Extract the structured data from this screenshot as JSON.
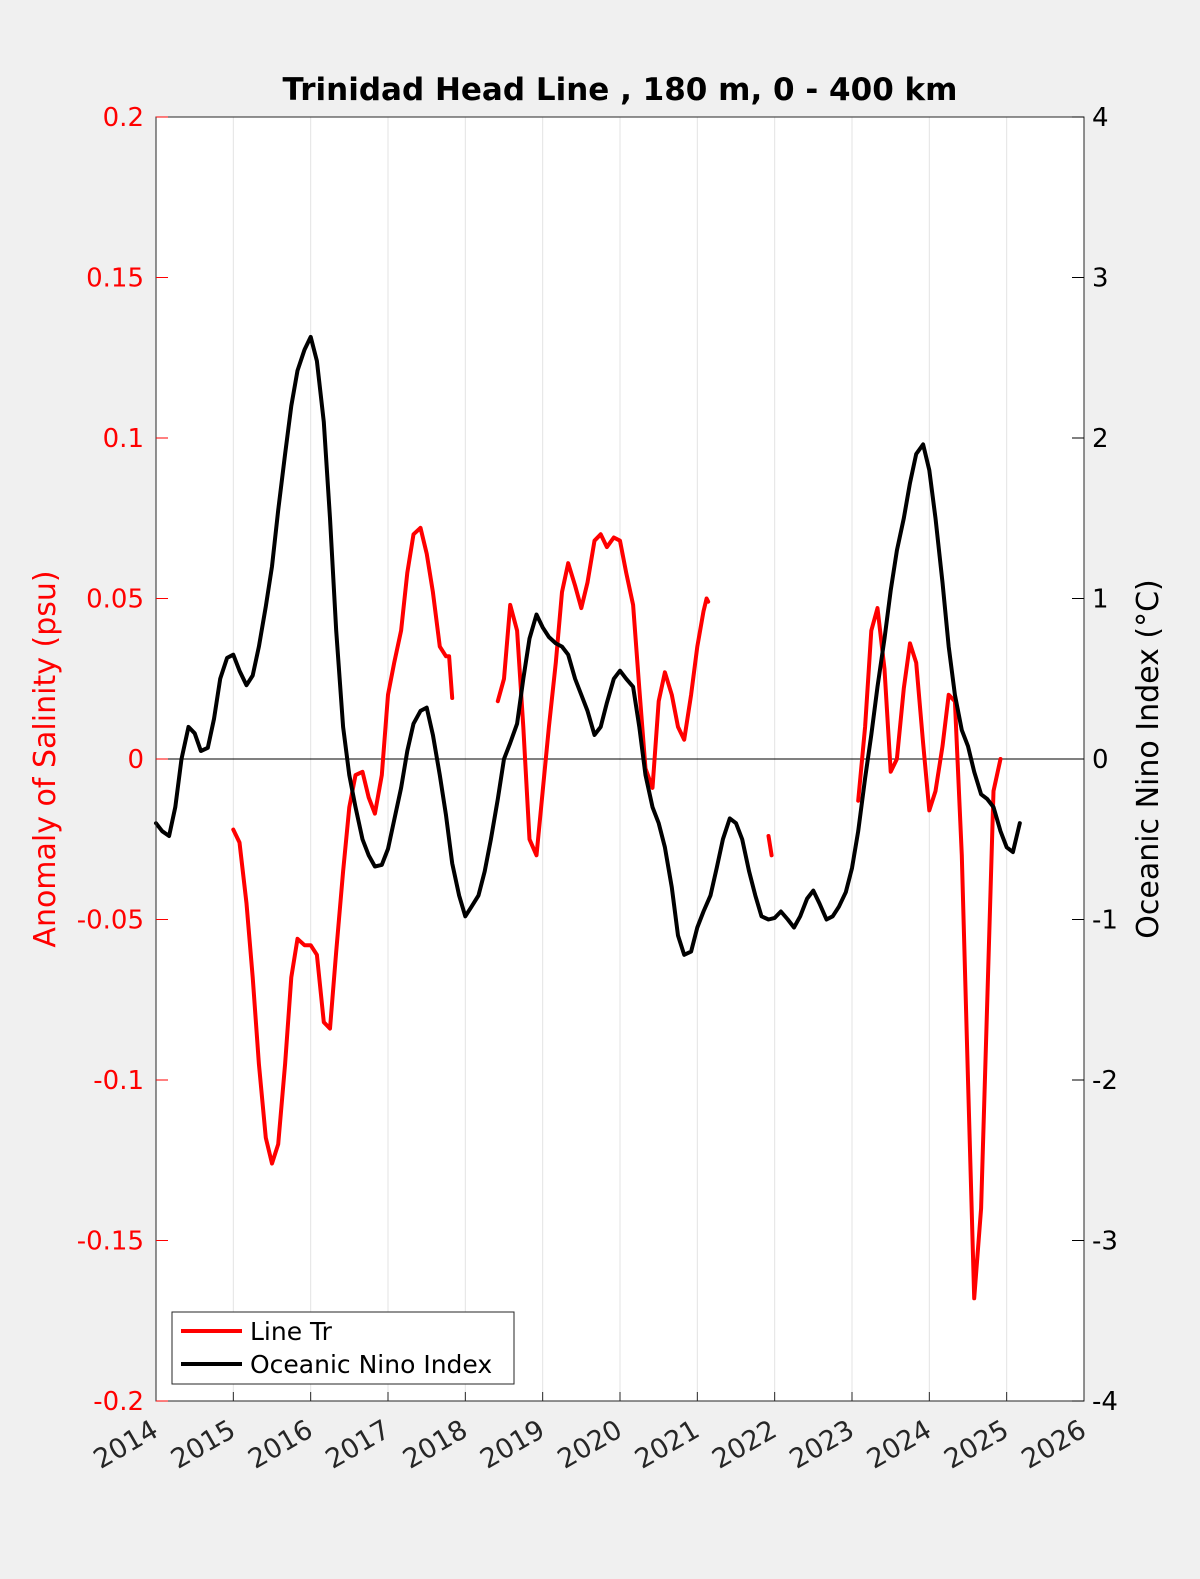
{
  "chart_data": {
    "type": "line",
    "title": "Trinidad Head Line , 180 m, 0 - 400 km",
    "xlabel": "",
    "ylabel_left": "Anomaly of Salinity (psu)",
    "ylabel_right": "Oceanic Nino Index (°C)",
    "xlim": [
      2014,
      2026
    ],
    "ylim_left": [
      -0.2,
      0.2
    ],
    "ylim_right": [
      -4,
      4
    ],
    "x_ticks": [
      "2014",
      "2015",
      "2016",
      "2017",
      "2018",
      "2019",
      "2020",
      "2021",
      "2022",
      "2023",
      "2024",
      "2025",
      "2026"
    ],
    "y_left_ticks": [
      "-0.2",
      "-0.15",
      "-0.1",
      "-0.05",
      "0",
      "0.05",
      "0.1",
      "0.15",
      "0.2"
    ],
    "y_right_ticks": [
      "-4",
      "-3",
      "-2",
      "-1",
      "0",
      "1",
      "2",
      "3",
      "4"
    ],
    "grid": "vertical",
    "zero_line": true,
    "legend_position": "bottom-left",
    "colors": {
      "salinity": "#ff0000",
      "oni": "#000000",
      "left_axis": "#ff0000",
      "right_axis": "#000000"
    },
    "series": [
      {
        "name": "Line Tr",
        "axis": "left",
        "color": "#ff0000",
        "segments": [
          [
            [
              2015.0,
              -0.022
            ],
            [
              2015.08,
              -0.026
            ],
            [
              2015.17,
              -0.045
            ],
            [
              2015.25,
              -0.068
            ],
            [
              2015.33,
              -0.095
            ],
            [
              2015.42,
              -0.118
            ],
            [
              2015.5,
              -0.126
            ],
            [
              2015.58,
              -0.12
            ],
            [
              2015.67,
              -0.095
            ],
            [
              2015.75,
              -0.068
            ],
            [
              2015.83,
              -0.056
            ],
            [
              2015.92,
              -0.058
            ],
            [
              2016.0,
              -0.058
            ],
            [
              2016.08,
              -0.061
            ],
            [
              2016.17,
              -0.082
            ],
            [
              2016.25,
              -0.084
            ],
            [
              2016.33,
              -0.06
            ],
            [
              2016.42,
              -0.035
            ],
            [
              2016.5,
              -0.015
            ],
            [
              2016.58,
              -0.005
            ],
            [
              2016.67,
              -0.004
            ],
            [
              2016.75,
              -0.012
            ],
            [
              2016.83,
              -0.017
            ],
            [
              2016.92,
              -0.005
            ],
            [
              2017.0,
              0.02
            ],
            [
              2017.08,
              0.03
            ],
            [
              2017.17,
              0.04
            ],
            [
              2017.25,
              0.058
            ],
            [
              2017.33,
              0.07
            ],
            [
              2017.42,
              0.072
            ],
            [
              2017.5,
              0.064
            ],
            [
              2017.58,
              0.052
            ],
            [
              2017.67,
              0.035
            ],
            [
              2017.75,
              0.032
            ],
            [
              2017.79,
              0.032
            ],
            [
              2017.83,
              0.019
            ]
          ],
          [
            [
              2018.42,
              0.018
            ],
            [
              2018.5,
              0.025
            ],
            [
              2018.58,
              0.048
            ],
            [
              2018.67,
              0.04
            ],
            [
              2018.75,
              0.01
            ],
            [
              2018.83,
              -0.025
            ],
            [
              2018.92,
              -0.03
            ],
            [
              2019.0,
              -0.01
            ],
            [
              2019.08,
              0.01
            ],
            [
              2019.17,
              0.03
            ],
            [
              2019.25,
              0.052
            ],
            [
              2019.33,
              0.061
            ],
            [
              2019.42,
              0.054
            ],
            [
              2019.5,
              0.047
            ],
            [
              2019.58,
              0.055
            ],
            [
              2019.67,
              0.068
            ],
            [
              2019.75,
              0.07
            ],
            [
              2019.83,
              0.066
            ],
            [
              2019.92,
              0.069
            ],
            [
              2020.0,
              0.068
            ],
            [
              2020.08,
              0.058
            ],
            [
              2020.17,
              0.048
            ],
            [
              2020.25,
              0.022
            ],
            [
              2020.33,
              -0.003
            ],
            [
              2020.42,
              -0.009
            ],
            [
              2020.5,
              0.018
            ],
            [
              2020.58,
              0.027
            ],
            [
              2020.67,
              0.02
            ],
            [
              2020.75,
              0.01
            ],
            [
              2020.83,
              0.006
            ],
            [
              2020.92,
              0.02
            ],
            [
              2021.0,
              0.035
            ],
            [
              2021.08,
              0.046
            ],
            [
              2021.12,
              0.05
            ],
            [
              2021.14,
              0.049
            ]
          ],
          [
            [
              2021.92,
              -0.024
            ],
            [
              2021.96,
              -0.03
            ]
          ],
          [
            [
              2023.08,
              -0.013
            ],
            [
              2023.17,
              0.01
            ],
            [
              2023.25,
              0.04
            ],
            [
              2023.33,
              0.047
            ],
            [
              2023.42,
              0.028
            ],
            [
              2023.5,
              -0.004
            ],
            [
              2023.58,
              0.0
            ],
            [
              2023.67,
              0.022
            ],
            [
              2023.75,
              0.036
            ],
            [
              2023.83,
              0.03
            ],
            [
              2023.92,
              0.005
            ],
            [
              2024.0,
              -0.016
            ],
            [
              2024.08,
              -0.01
            ],
            [
              2024.17,
              0.004
            ],
            [
              2024.25,
              0.02
            ],
            [
              2024.33,
              0.018
            ],
            [
              2024.42,
              -0.03
            ],
            [
              2024.5,
              -0.1
            ],
            [
              2024.58,
              -0.168
            ],
            [
              2024.67,
              -0.14
            ],
            [
              2024.75,
              -0.075
            ],
            [
              2024.83,
              -0.01
            ],
            [
              2024.92,
              0.0
            ]
          ]
        ]
      },
      {
        "name": "Oceanic Nino Index",
        "axis": "right",
        "color": "#000000",
        "segments": [
          [
            [
              2014.0,
              -0.4
            ],
            [
              2014.08,
              -0.45
            ],
            [
              2014.17,
              -0.48
            ],
            [
              2014.25,
              -0.3
            ],
            [
              2014.33,
              0.0
            ],
            [
              2014.42,
              0.2
            ],
            [
              2014.5,
              0.16
            ],
            [
              2014.58,
              0.05
            ],
            [
              2014.67,
              0.07
            ],
            [
              2014.75,
              0.25
            ],
            [
              2014.83,
              0.5
            ],
            [
              2014.92,
              0.63
            ],
            [
              2015.0,
              0.65
            ],
            [
              2015.08,
              0.55
            ],
            [
              2015.17,
              0.46
            ],
            [
              2015.25,
              0.52
            ],
            [
              2015.33,
              0.7
            ],
            [
              2015.42,
              0.95
            ],
            [
              2015.5,
              1.2
            ],
            [
              2015.58,
              1.55
            ],
            [
              2015.67,
              1.9
            ],
            [
              2015.75,
              2.2
            ],
            [
              2015.83,
              2.42
            ],
            [
              2015.92,
              2.55
            ],
            [
              2016.0,
              2.63
            ],
            [
              2016.08,
              2.48
            ],
            [
              2016.17,
              2.1
            ],
            [
              2016.25,
              1.5
            ],
            [
              2016.33,
              0.8
            ],
            [
              2016.42,
              0.2
            ],
            [
              2016.5,
              -0.1
            ],
            [
              2016.58,
              -0.3
            ],
            [
              2016.67,
              -0.5
            ],
            [
              2016.75,
              -0.6
            ],
            [
              2016.83,
              -0.67
            ],
            [
              2016.92,
              -0.66
            ],
            [
              2017.0,
              -0.56
            ],
            [
              2017.08,
              -0.38
            ],
            [
              2017.17,
              -0.18
            ],
            [
              2017.25,
              0.05
            ],
            [
              2017.33,
              0.22
            ],
            [
              2017.42,
              0.3
            ],
            [
              2017.5,
              0.32
            ],
            [
              2017.58,
              0.15
            ],
            [
              2017.67,
              -0.1
            ],
            [
              2017.75,
              -0.35
            ],
            [
              2017.83,
              -0.65
            ],
            [
              2017.92,
              -0.85
            ],
            [
              2018.0,
              -0.98
            ],
            [
              2018.08,
              -0.92
            ],
            [
              2018.17,
              -0.85
            ],
            [
              2018.25,
              -0.7
            ],
            [
              2018.33,
              -0.5
            ],
            [
              2018.42,
              -0.25
            ],
            [
              2018.5,
              0.0
            ],
            [
              2018.58,
              0.1
            ],
            [
              2018.67,
              0.22
            ],
            [
              2018.75,
              0.5
            ],
            [
              2018.83,
              0.75
            ],
            [
              2018.92,
              0.9
            ],
            [
              2019.0,
              0.82
            ],
            [
              2019.08,
              0.76
            ],
            [
              2019.17,
              0.72
            ],
            [
              2019.25,
              0.7
            ],
            [
              2019.33,
              0.65
            ],
            [
              2019.42,
              0.5
            ],
            [
              2019.5,
              0.4
            ],
            [
              2019.58,
              0.3
            ],
            [
              2019.67,
              0.15
            ],
            [
              2019.75,
              0.2
            ],
            [
              2019.83,
              0.35
            ],
            [
              2019.92,
              0.5
            ],
            [
              2020.0,
              0.55
            ],
            [
              2020.08,
              0.5
            ],
            [
              2020.17,
              0.45
            ],
            [
              2020.25,
              0.2
            ],
            [
              2020.33,
              -0.1
            ],
            [
              2020.42,
              -0.3
            ],
            [
              2020.5,
              -0.4
            ],
            [
              2020.58,
              -0.55
            ],
            [
              2020.67,
              -0.8
            ],
            [
              2020.75,
              -1.1
            ],
            [
              2020.83,
              -1.22
            ],
            [
              2020.92,
              -1.2
            ],
            [
              2021.0,
              -1.05
            ],
            [
              2021.08,
              -0.95
            ],
            [
              2021.17,
              -0.85
            ],
            [
              2021.25,
              -0.68
            ],
            [
              2021.33,
              -0.5
            ],
            [
              2021.42,
              -0.37
            ],
            [
              2021.5,
              -0.4
            ],
            [
              2021.58,
              -0.5
            ],
            [
              2021.67,
              -0.7
            ],
            [
              2021.75,
              -0.85
            ],
            [
              2021.83,
              -0.98
            ],
            [
              2021.92,
              -1.0
            ],
            [
              2022.0,
              -0.99
            ],
            [
              2022.08,
              -0.95
            ],
            [
              2022.17,
              -1.0
            ],
            [
              2022.25,
              -1.05
            ],
            [
              2022.33,
              -0.98
            ],
            [
              2022.42,
              -0.87
            ],
            [
              2022.5,
              -0.82
            ],
            [
              2022.58,
              -0.9
            ],
            [
              2022.67,
              -1.0
            ],
            [
              2022.75,
              -0.98
            ],
            [
              2022.83,
              -0.92
            ],
            [
              2022.92,
              -0.83
            ],
            [
              2023.0,
              -0.68
            ],
            [
              2023.08,
              -0.45
            ],
            [
              2023.17,
              -0.12
            ],
            [
              2023.25,
              0.15
            ],
            [
              2023.33,
              0.45
            ],
            [
              2023.42,
              0.75
            ],
            [
              2023.5,
              1.05
            ],
            [
              2023.58,
              1.3
            ],
            [
              2023.67,
              1.5
            ],
            [
              2023.75,
              1.72
            ],
            [
              2023.83,
              1.9
            ],
            [
              2023.92,
              1.96
            ],
            [
              2024.0,
              1.8
            ],
            [
              2024.08,
              1.5
            ],
            [
              2024.17,
              1.1
            ],
            [
              2024.25,
              0.7
            ],
            [
              2024.33,
              0.4
            ],
            [
              2024.42,
              0.18
            ],
            [
              2024.5,
              0.08
            ],
            [
              2024.58,
              -0.08
            ],
            [
              2024.67,
              -0.22
            ],
            [
              2024.75,
              -0.25
            ],
            [
              2024.83,
              -0.3
            ],
            [
              2024.92,
              -0.45
            ],
            [
              2025.0,
              -0.55
            ],
            [
              2025.08,
              -0.58
            ],
            [
              2025.17,
              -0.4
            ]
          ]
        ]
      }
    ]
  }
}
